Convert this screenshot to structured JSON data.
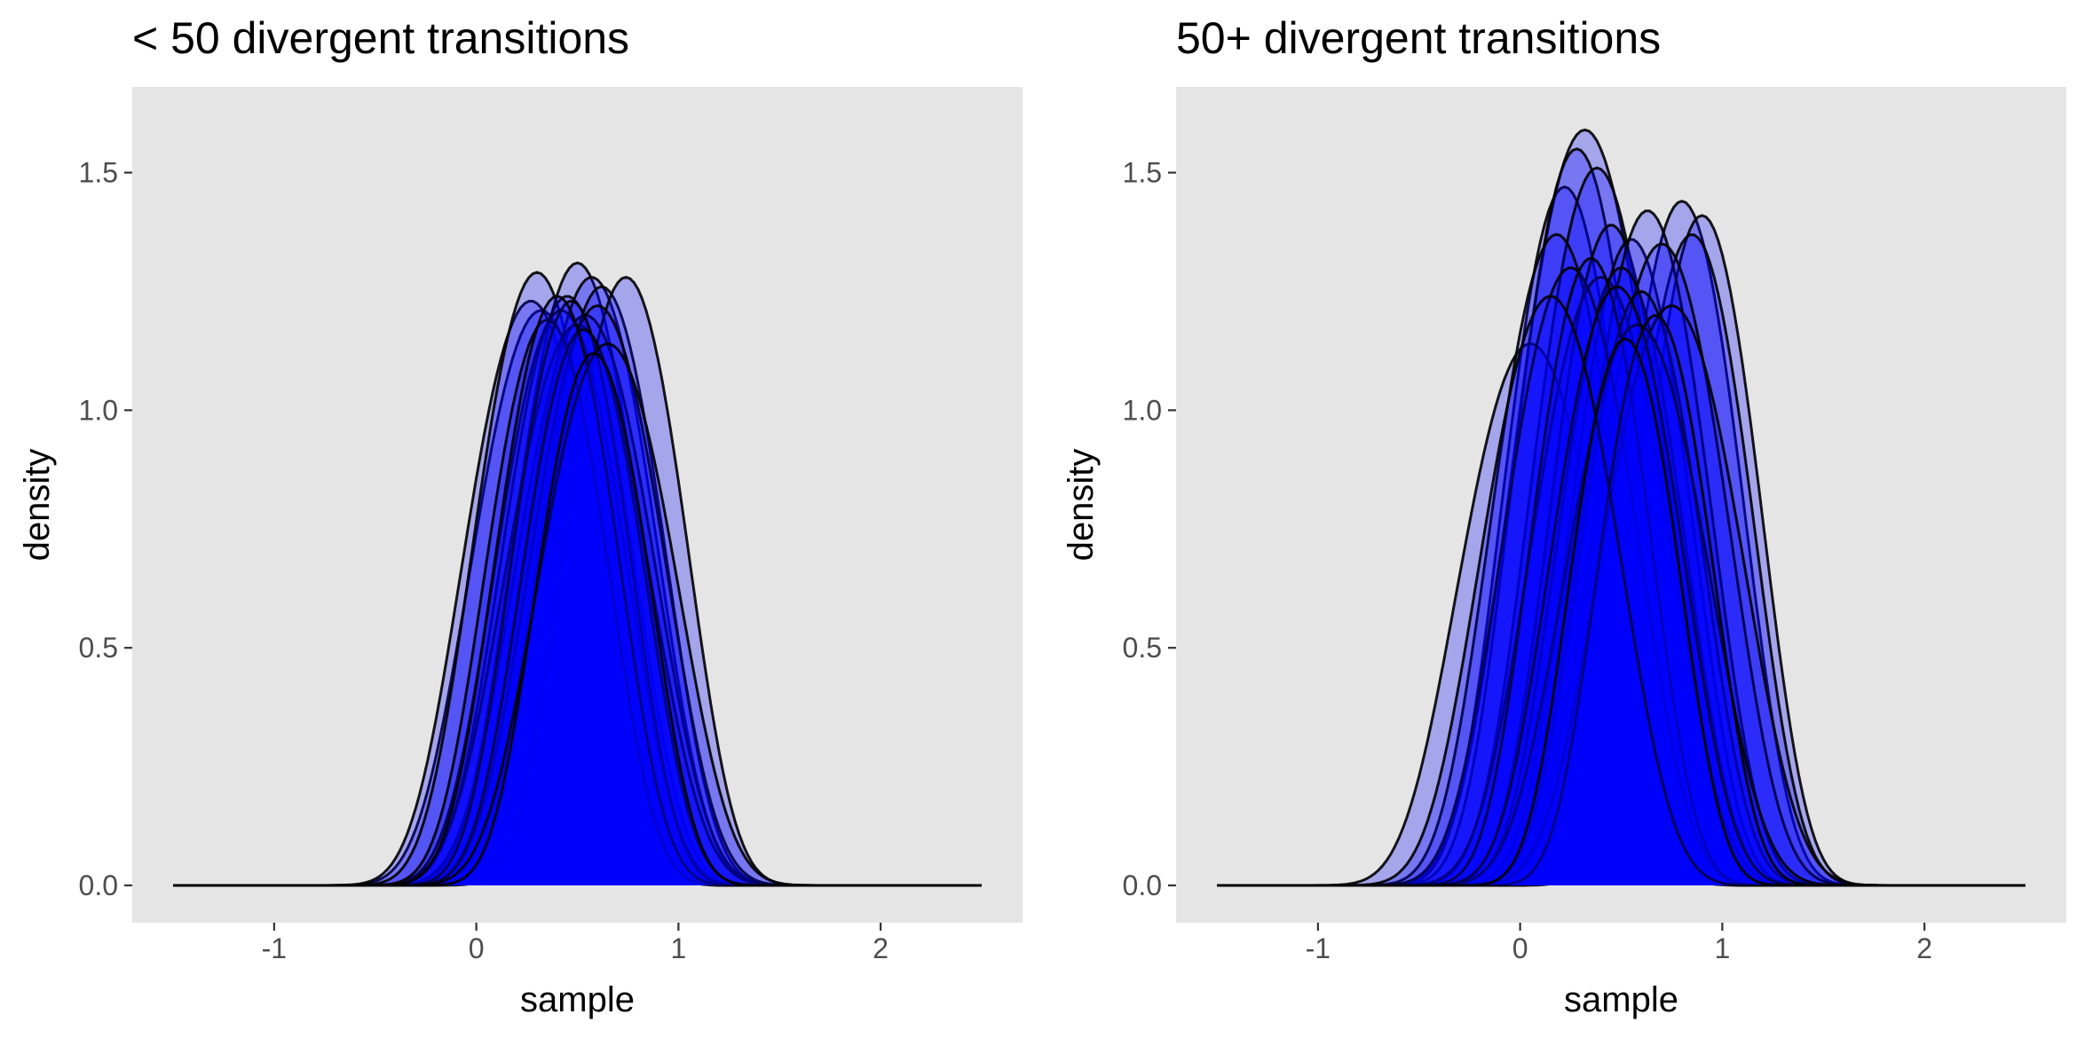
{
  "chart_data": [
    {
      "type": "area",
      "title": "< 50 divergent transitions",
      "xlabel": "sample",
      "ylabel": "density",
      "xlim": [
        -1.5,
        2.5
      ],
      "ylim": [
        0,
        1.6
      ],
      "x_ticks": [
        -1,
        0,
        1,
        2
      ],
      "y_ticks": [
        0.0,
        0.5,
        1.0,
        1.5
      ],
      "x_tick_labels": [
        "-1",
        "0",
        "1",
        "2"
      ],
      "y_tick_labels": [
        "0.0",
        "0.5",
        "1.0",
        "1.5"
      ],
      "grid": false,
      "background": "#e5e5e5",
      "fill_color": "#0000ff",
      "line_color": "#000000",
      "series": [
        {
          "mean": 0.32,
          "sd": 0.34,
          "peak": 1.21
        },
        {
          "mean": 0.27,
          "sd": 0.33,
          "peak": 1.23
        },
        {
          "mean": 0.3,
          "sd": 0.31,
          "peak": 1.29
        },
        {
          "mean": 0.5,
          "sd": 0.31,
          "peak": 1.31
        },
        {
          "mean": 0.45,
          "sd": 0.32,
          "peak": 1.24
        },
        {
          "mean": 0.57,
          "sd": 0.32,
          "peak": 1.28
        },
        {
          "mean": 0.62,
          "sd": 0.31,
          "peak": 1.26
        },
        {
          "mean": 0.74,
          "sd": 0.3,
          "peak": 1.28
        },
        {
          "mean": 0.54,
          "sd": 0.34,
          "peak": 1.2
        },
        {
          "mean": 0.42,
          "sd": 0.32,
          "peak": 1.21
        },
        {
          "mean": 0.5,
          "sd": 0.35,
          "peak": 1.18
        },
        {
          "mean": 0.6,
          "sd": 0.33,
          "peak": 1.22
        },
        {
          "mean": 0.35,
          "sd": 0.3,
          "peak": 1.19
        },
        {
          "mean": 0.47,
          "sd": 0.29,
          "peak": 1.23
        },
        {
          "mean": 0.53,
          "sd": 0.3,
          "peak": 1.17
        },
        {
          "mean": 0.4,
          "sd": 0.3,
          "peak": 1.24
        },
        {
          "mean": 0.65,
          "sd": 0.34,
          "peak": 1.14
        },
        {
          "mean": 0.58,
          "sd": 0.28,
          "peak": 1.12
        }
      ]
    },
    {
      "type": "area",
      "title": "50+ divergent transitions",
      "xlabel": "sample",
      "ylabel": "density",
      "xlim": [
        -1.5,
        2.5
      ],
      "ylim": [
        0,
        1.6
      ],
      "x_ticks": [
        -1,
        0,
        1,
        2
      ],
      "y_ticks": [
        0.0,
        0.5,
        1.0,
        1.5
      ],
      "x_tick_labels": [
        "-1",
        "0",
        "1",
        "2"
      ],
      "y_tick_labels": [
        "0.0",
        "0.5",
        "1.0",
        "1.5"
      ],
      "grid": false,
      "background": "#e5e5e5",
      "fill_color": "#0000ff",
      "line_color": "#000000",
      "series": [
        {
          "mean": 0.32,
          "sd": 0.35,
          "peak": 1.59
        },
        {
          "mean": 0.22,
          "sd": 0.3,
          "peak": 1.47
        },
        {
          "mean": 0.28,
          "sd": 0.31,
          "peak": 1.55
        },
        {
          "mean": 0.38,
          "sd": 0.32,
          "peak": 1.51
        },
        {
          "mean": 0.8,
          "sd": 0.3,
          "peak": 1.44
        },
        {
          "mean": 0.9,
          "sd": 0.29,
          "peak": 1.41
        },
        {
          "mean": 0.85,
          "sd": 0.3,
          "peak": 1.37
        },
        {
          "mean": 0.05,
          "sd": 0.35,
          "peak": 1.14
        },
        {
          "mean": 0.18,
          "sd": 0.32,
          "peak": 1.37
        },
        {
          "mean": 0.45,
          "sd": 0.3,
          "peak": 1.39
        },
        {
          "mean": 0.55,
          "sd": 0.3,
          "peak": 1.36
        },
        {
          "mean": 0.63,
          "sd": 0.31,
          "peak": 1.42
        },
        {
          "mean": 0.7,
          "sd": 0.33,
          "peak": 1.35
        },
        {
          "mean": 0.4,
          "sd": 0.34,
          "peak": 1.28
        },
        {
          "mean": 0.5,
          "sd": 0.31,
          "peak": 1.3
        },
        {
          "mean": 0.6,
          "sd": 0.3,
          "peak": 1.25
        },
        {
          "mean": 0.25,
          "sd": 0.33,
          "peak": 1.3
        },
        {
          "mean": 0.75,
          "sd": 0.35,
          "peak": 1.22
        },
        {
          "mean": 0.35,
          "sd": 0.29,
          "peak": 1.32
        },
        {
          "mean": 0.58,
          "sd": 0.35,
          "peak": 1.18
        },
        {
          "mean": 0.48,
          "sd": 0.32,
          "peak": 1.26
        },
        {
          "mean": 0.67,
          "sd": 0.28,
          "peak": 1.2
        },
        {
          "mean": 0.15,
          "sd": 0.34,
          "peak": 1.24
        },
        {
          "mean": 0.52,
          "sd": 0.27,
          "peak": 1.15
        }
      ]
    }
  ]
}
